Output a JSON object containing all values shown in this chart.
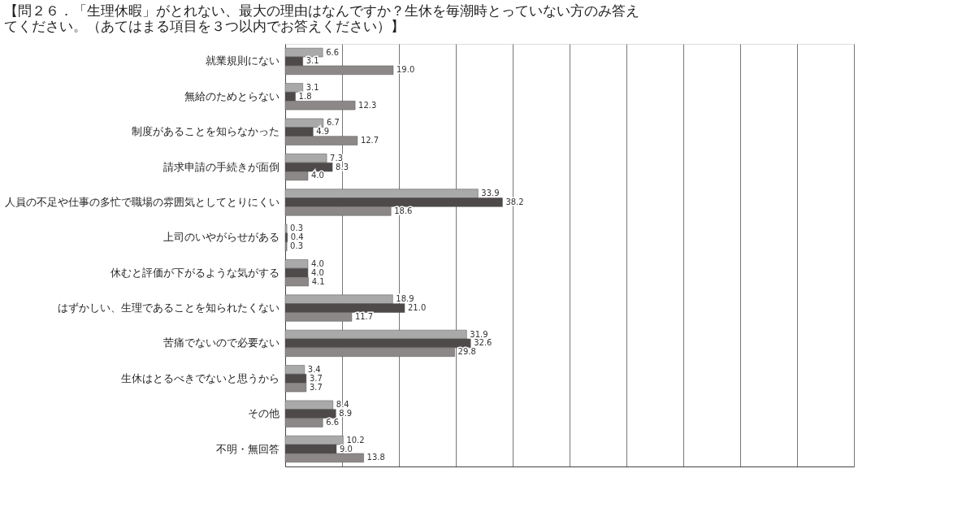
{
  "chart_data": {
    "type": "bar",
    "orientation": "horizontal",
    "title": "【問２６．「生理休暇」がとれない、最大の理由はなんですか？生休を毎潮時とっていない方のみ答えてください。（あてはまる項目を３つ以内でお答えください）】",
    "categories": [
      "就業規則にない",
      "無給のためとらない",
      "制度があることを知らなかった",
      "請求申請の手続きが面倒",
      "人員の不足や仕事の多忙で職場の雰囲気としてとりにくい",
      "上司のいやがらせがある",
      "休むと評価が下がるような気がする",
      "はずかしい、生理であることを知られたくない",
      "苦痛でないので必要ない",
      "生休はとるべきでないと思うから",
      "その他",
      "不明・無回答"
    ],
    "series": [
      {
        "color": "#a9a9a9",
        "values": [
          6.6,
          3.1,
          6.7,
          7.3,
          33.9,
          0.3,
          4,
          18.9,
          31.9,
          3.4,
          8.4,
          10.2
        ],
        "value_labels": [
          "6.6",
          "3.1",
          "6.7",
          "7.3",
          "33.9",
          "0.3",
          "4.0",
          "18.9",
          "31.9",
          "3.4",
          "8.4",
          "10.2"
        ]
      },
      {
        "color": "#4f4a4a",
        "values": [
          3.1,
          1.8,
          4.9,
          8.3,
          38.2,
          0.4,
          4,
          21,
          32.6,
          3.7,
          8.9,
          9
        ],
        "value_labels": [
          "3.1",
          "1.8",
          "4.9",
          "8.3",
          "38.2",
          "0.4",
          "4.0",
          "21.0",
          "32.6",
          "3.7",
          "8.9",
          "9.0"
        ]
      },
      {
        "color": "#8c8888",
        "values": [
          19,
          12.3,
          12.7,
          4,
          18.6,
          0.3,
          4.1,
          11.7,
          29.8,
          3.7,
          6.6,
          13.8
        ],
        "value_labels": [
          "19.0",
          "12.3",
          "12.7",
          "4.0",
          "18.6",
          "0.3",
          "4.1",
          "11.7",
          "29.8",
          "3.7",
          "6.6",
          "13.8"
        ]
      }
    ],
    "xlim": [
      0,
      100
    ],
    "xticks": [
      {
        "value": 10,
        "label": null
      },
      {
        "value": 20,
        "label": null
      },
      {
        "value": 30,
        "label": null
      },
      {
        "value": 40,
        "label": null
      },
      {
        "value": 50,
        "label": null
      },
      {
        "value": 60,
        "label": null
      },
      {
        "value": 70,
        "label": null
      },
      {
        "value": 80,
        "label": null
      },
      {
        "value": 90,
        "label": null
      },
      {
        "value": 100,
        "label": null
      }
    ],
    "grid": "x",
    "tick_labels": "y"
  }
}
